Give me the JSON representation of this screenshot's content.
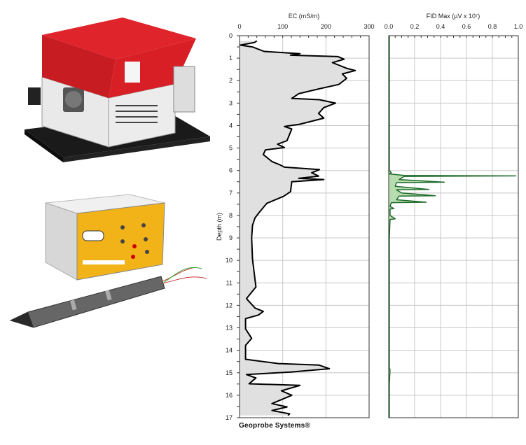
{
  "brand": "Geoprobe Systems®",
  "colors": {
    "ec_line": "#000000",
    "ec_fill": "#e0e0e0",
    "fid_line": "#1e6b2a",
    "fid_fill": "#b8dcb0",
    "grid": "#c8c8c8",
    "instrument_red": "#d81f26",
    "panel_yellow": "#f2b318"
  },
  "images": [
    {
      "name": "ec-fid-controller-red-housing"
    },
    {
      "name": "ec-interface-box-yellow-panel"
    },
    {
      "name": "ec-probe"
    }
  ],
  "chart_data": [
    {
      "type": "area",
      "title": "EC (mS/m)",
      "xlabel": "EC (mS/m)",
      "ylabel": "Depth (m)",
      "xlim": [
        0,
        300
      ],
      "ylim": [
        0,
        17
      ],
      "y_inverted": true,
      "x_ticks": [
        0,
        100,
        200,
        300
      ],
      "y_ticks": [
        0,
        1,
        2,
        3,
        4,
        5,
        6,
        7,
        8,
        9,
        10,
        11,
        12,
        13,
        14,
        15,
        16,
        17
      ],
      "grid": true,
      "series": [
        {
          "depth": [
            0.23,
            0.3,
            0.42,
            0.5,
            0.7,
            0.8,
            0.87,
            0.93,
            1.05,
            1.2,
            1.45,
            1.55,
            1.7,
            1.9,
            2.17,
            2.37,
            2.58,
            2.79,
            2.85,
            3.0,
            3.2,
            3.46,
            3.67,
            3.94,
            4.04,
            4.15,
            4.67,
            4.83,
            4.98,
            5.08,
            5.29,
            5.6,
            5.75,
            5.85,
            5.96,
            6.1,
            6.25,
            6.35,
            6.4,
            6.5,
            6.94,
            7.15,
            7.46,
            7.83,
            8.1,
            8.44,
            9.0,
            9.94,
            11.18,
            11.7,
            12.12,
            12.27,
            12.43,
            12.59,
            13.05,
            13.47,
            13.78,
            14.4,
            14.59,
            14.66,
            14.82,
            14.97,
            15.08,
            15.23,
            15.49,
            15.56,
            15.8,
            16.0,
            16.37,
            16.52,
            16.68,
            16.83,
            16.9
          ],
          "ec": [
            40,
            35,
            2,
            30,
            57,
            140,
            118,
            228,
            242,
            215,
            248,
            268,
            238,
            248,
            230,
            183,
            137,
            121,
            185,
            222,
            195,
            183,
            195,
            140,
            104,
            121,
            110,
            88,
            104,
            60,
            55,
            75,
            94,
            104,
            185,
            167,
            183,
            137,
            195,
            121,
            118,
            102,
            63,
            47,
            36,
            30,
            28,
            30,
            38,
            16,
            36,
            55,
            44,
            14,
            14,
            28,
            14,
            14,
            90,
            184,
            208,
            118,
            16,
            38,
            22,
            140,
            97,
            121,
            75,
            110,
            75,
            116,
            112
          ]
        }
      ]
    },
    {
      "type": "area",
      "title": "FID Max (µV x 10⁷)",
      "xlabel": "FID Max (µV x 10⁷)",
      "xlim": [
        0,
        1.0
      ],
      "ylim": [
        0,
        17
      ],
      "y_inverted": true,
      "x_ticks": [
        "0.0",
        "0.2",
        "0.4",
        "0.6",
        "0.8",
        "1.0"
      ],
      "grid": true,
      "series": [
        {
          "depth": [
            0,
            6.0,
            6.1,
            6.15,
            6.22,
            6.24,
            6.26,
            6.4,
            6.52,
            6.54,
            6.7,
            6.84,
            6.86,
            7.0,
            7.12,
            7.14,
            7.3,
            7.41,
            7.43,
            7.6,
            7.69,
            7.72,
            8.0,
            8.15,
            8.18,
            9,
            10,
            11,
            12,
            13,
            14,
            14.8,
            14.85,
            15.5,
            16,
            16.5,
            17
          ],
          "fid": [
            0.005,
            0.005,
            0.02,
            0.005,
            0.12,
            0.98,
            0.12,
            0.08,
            0.43,
            0.06,
            0.05,
            0.31,
            0.06,
            0.1,
            0.36,
            0.08,
            0.06,
            0.29,
            0.02,
            0.01,
            0.04,
            0.01,
            0.01,
            0.05,
            0.01,
            0.005,
            0.005,
            0.005,
            0.005,
            0.005,
            0.005,
            0.005,
            0.01,
            0.005,
            0.005,
            0.005,
            0.005
          ]
        }
      ]
    }
  ]
}
